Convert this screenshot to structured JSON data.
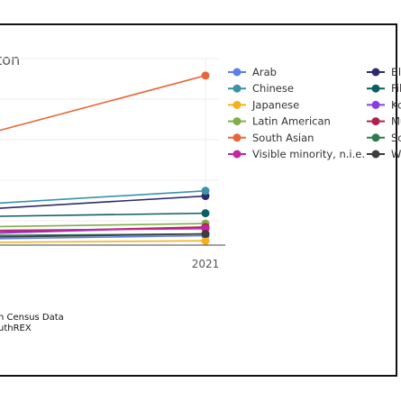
{
  "chart_data": {
    "type": "line",
    "title_visible": "ton",
    "x_tick_visible": "2021",
    "xlim": [
      2016,
      2021
    ],
    "ylim": [
      0,
      100
    ],
    "grid": true,
    "legend_position": "right",
    "source_lines": [
      "n Census Data",
      "uthREX"
    ],
    "series": [
      {
        "name": "Arab",
        "color": "#5b7fe8",
        "values": [
          {
            "x": 2016,
            "y": 3
          },
          {
            "x": 2021,
            "y": 5
          }
        ]
      },
      {
        "name": "Black",
        "label_visible": "Bla",
        "color": "#2f2a6b",
        "values": [
          {
            "x": 2016,
            "y": 20
          },
          {
            "x": 2021,
            "y": 28
          }
        ]
      },
      {
        "name": "Chinese",
        "color": "#3a93a6",
        "values": [
          {
            "x": 2016,
            "y": 23
          },
          {
            "x": 2021,
            "y": 31
          }
        ]
      },
      {
        "name": "Filipino",
        "label_visible": "Fili",
        "color": "#0d5e63",
        "values": [
          {
            "x": 2016,
            "y": 16
          },
          {
            "x": 2021,
            "y": 18
          }
        ]
      },
      {
        "name": "Japanese",
        "color": "#f2b21c",
        "values": [
          {
            "x": 2016,
            "y": 1
          },
          {
            "x": 2021,
            "y": 2
          }
        ]
      },
      {
        "name": "Korean",
        "label_visible": "Ko",
        "color": "#8a3ee0",
        "values": [
          {
            "x": 2016,
            "y": 6
          },
          {
            "x": 2021,
            "y": 10
          }
        ]
      },
      {
        "name": "Latin American",
        "color": "#7fb04a",
        "values": [
          {
            "x": 2016,
            "y": 10
          },
          {
            "x": 2021,
            "y": 12
          }
        ]
      },
      {
        "name": "Multiple visible minorities",
        "label_visible": "Mu",
        "color": "#b0224a",
        "values": [
          {
            "x": 2016,
            "y": 7
          },
          {
            "x": 2021,
            "y": 10
          }
        ]
      },
      {
        "name": "South Asian",
        "color": "#e8663b",
        "values": [
          {
            "x": 2016,
            "y": 62
          },
          {
            "x": 2021,
            "y": 98
          }
        ]
      },
      {
        "name": "Southeast Asian",
        "label_visible": "So",
        "color": "#2e7a4e",
        "values": [
          {
            "x": 2016,
            "y": 5
          },
          {
            "x": 2021,
            "y": 6
          }
        ]
      },
      {
        "name": "Visible minority, n.i.e.",
        "color": "#c4269f",
        "values": [
          {
            "x": 2016,
            "y": 8
          },
          {
            "x": 2021,
            "y": 9
          }
        ]
      },
      {
        "name": "West Asian",
        "label_visible": "We",
        "color": "#3d3d3d",
        "values": [
          {
            "x": 2016,
            "y": 4
          },
          {
            "x": 2021,
            "y": 6
          }
        ]
      }
    ]
  }
}
